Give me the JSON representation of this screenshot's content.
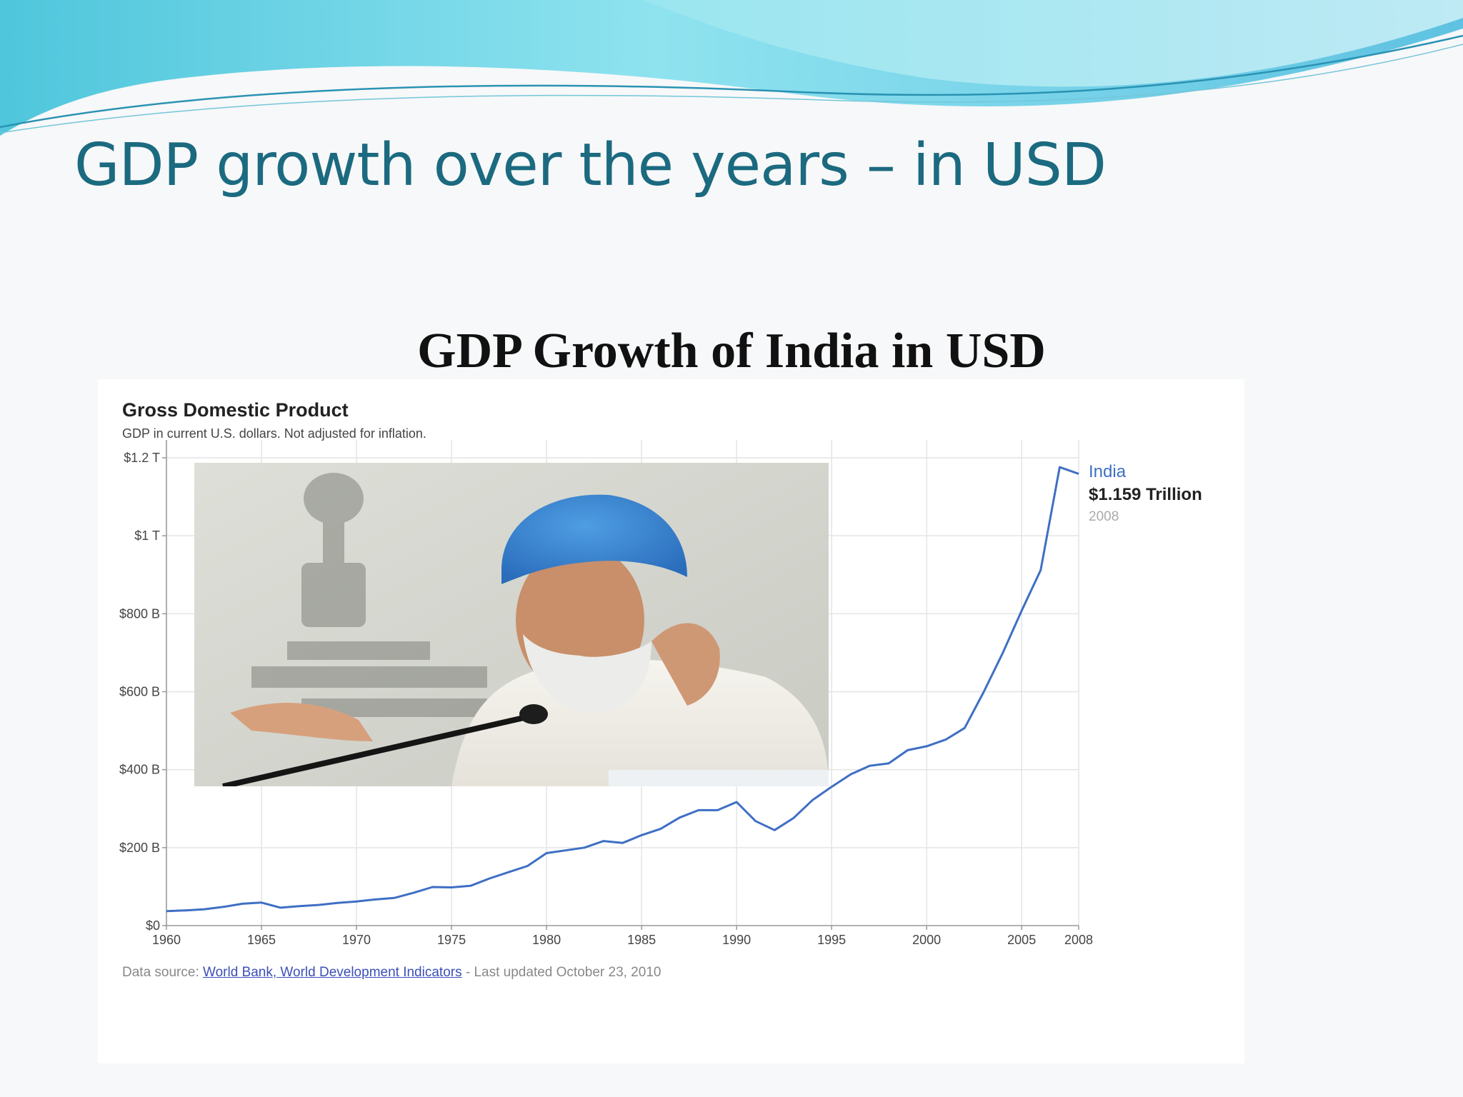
{
  "slide": {
    "title": "GDP growth over the years – in USD",
    "subtitle": "GDP Growth of India in USD"
  },
  "chart": {
    "title": "Gross Domestic Product",
    "subtitle": "GDP in current U.S. dollars. Not adjusted for inflation.",
    "legend": {
      "name": "India",
      "value": "$1.159 Trillion",
      "year": "2008"
    },
    "source": {
      "prefix": "Data source:",
      "link": "World Bank, World Development Indicators",
      "suffix": "- Last updated October 23, 2010"
    }
  },
  "photo": {
    "icon": "photo-of-speaker"
  },
  "colors": {
    "title": "#1b6a80",
    "line": "#3f6fc4",
    "link": "#3b4fb8"
  },
  "chart_data": {
    "type": "line",
    "title": "Gross Domestic Product",
    "subtitle": "GDP in current U.S. dollars. Not adjusted for inflation.",
    "xlabel": "",
    "ylabel": "",
    "xlim": [
      1960,
      2008
    ],
    "ylim": [
      0,
      1200
    ],
    "x_ticks": [
      1960,
      1965,
      1970,
      1975,
      1980,
      1985,
      1990,
      1995,
      2000,
      2005,
      2008
    ],
    "x_tick_labels": [
      "1960",
      "1965",
      "1970",
      "1975",
      "1980",
      "1985",
      "1990",
      "1995",
      "2000",
      "2005",
      "2008"
    ],
    "y_ticks": [
      0,
      200,
      400,
      600,
      800,
      1000,
      1200
    ],
    "y_tick_labels": [
      "$0",
      "$200 B",
      "$400 B",
      "$600 B",
      "$800 B",
      "$1 T",
      "$1.2 T"
    ],
    "grid": true,
    "legend_position": "top-right",
    "series": [
      {
        "name": "India",
        "color": "#3f6fc4",
        "x": [
          1960,
          1961,
          1962,
          1963,
          1964,
          1965,
          1966,
          1967,
          1968,
          1969,
          1970,
          1971,
          1972,
          1973,
          1974,
          1975,
          1976,
          1977,
          1978,
          1979,
          1980,
          1981,
          1982,
          1983,
          1984,
          1985,
          1986,
          1987,
          1988,
          1989,
          1990,
          1991,
          1992,
          1993,
          1994,
          1995,
          1996,
          1997,
          1998,
          1999,
          2000,
          2001,
          2002,
          2003,
          2004,
          2005,
          2006,
          2007,
          2008
        ],
        "values": [
          37,
          39,
          42,
          48,
          56,
          59,
          46,
          50,
          53,
          58,
          62,
          67,
          71,
          84,
          99,
          98,
          102,
          121,
          137,
          153,
          186,
          193,
          200,
          217,
          212,
          232,
          248,
          277,
          296,
          296,
          317,
          268,
          245,
          276,
          322,
          356,
          388,
          410,
          416,
          450,
          460,
          477,
          507,
          599,
          699,
          808,
          912,
          1176,
          1159
        ]
      }
    ]
  }
}
